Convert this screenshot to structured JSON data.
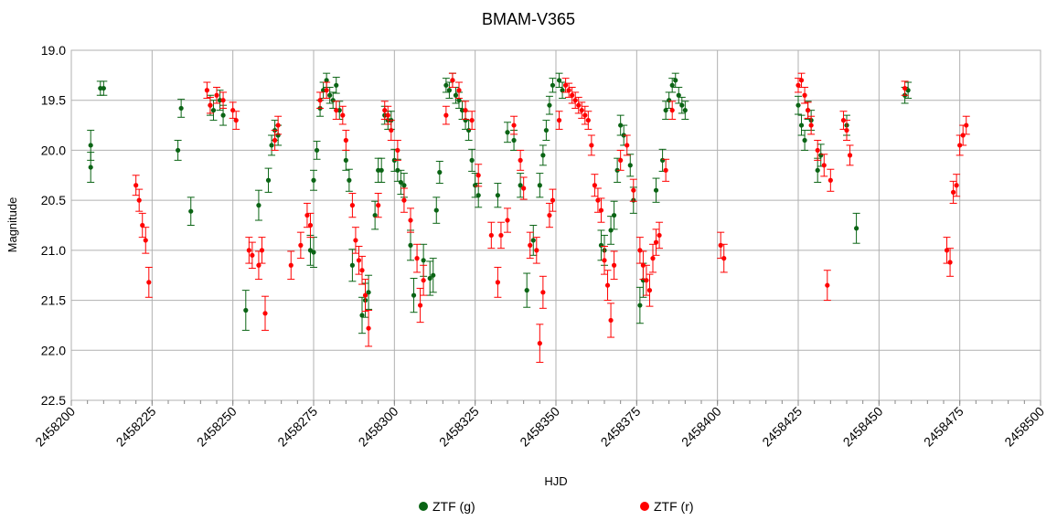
{
  "chart_data": {
    "type": "scatter",
    "title": "BMAM-V365",
    "xlabel": "HJD",
    "ylabel": "Magnitude",
    "xlim": [
      2458200,
      2458500
    ],
    "ylim": [
      19.0,
      22.5
    ],
    "y_inverted": true,
    "x_ticks": [
      "2458200",
      "2458225",
      "2458250",
      "2458275",
      "2458300",
      "2458325",
      "2458350",
      "2458375",
      "2458400",
      "2458425",
      "2458450",
      "2458475",
      "2458500"
    ],
    "y_ticks": [
      "19.0",
      "19.5",
      "20.0",
      "20.5",
      "21.0",
      "21.5",
      "22.0",
      "22.5"
    ],
    "grid": true,
    "legend_position": "bottom",
    "series": [
      {
        "name": "ZTF (g)",
        "color": "#0a6414",
        "points": [
          [
            2458206,
            19.95,
            0.15
          ],
          [
            2458206,
            20.17,
            0.15
          ],
          [
            2458209,
            19.38,
            0.07
          ],
          [
            2458210,
            19.38,
            0.07
          ],
          [
            2458233,
            20.0,
            0.1
          ],
          [
            2458234,
            19.58,
            0.09
          ],
          [
            2458237,
            20.61,
            0.14
          ],
          [
            2458243,
            19.55,
            0.1
          ],
          [
            2458244,
            19.6,
            0.1
          ],
          [
            2458246,
            19.5,
            0.1
          ],
          [
            2458247,
            19.65,
            0.1
          ],
          [
            2458254,
            21.6,
            0.2
          ],
          [
            2458258,
            20.55,
            0.15
          ],
          [
            2458261,
            20.3,
            0.12
          ],
          [
            2458262,
            19.95,
            0.1
          ],
          [
            2458263,
            19.8,
            0.1
          ],
          [
            2458264,
            19.85,
            0.1
          ],
          [
            2458275,
            20.3,
            0.1
          ],
          [
            2458276,
            20.0,
            0.09
          ],
          [
            2458277,
            19.58,
            0.08
          ],
          [
            2458278,
            19.4,
            0.08
          ],
          [
            2458279,
            19.3,
            0.07
          ],
          [
            2458280,
            19.45,
            0.08
          ],
          [
            2458281,
            19.5,
            0.08
          ],
          [
            2458282,
            19.35,
            0.08
          ],
          [
            2458283,
            19.6,
            0.09
          ],
          [
            2458274,
            21.0,
            0.15
          ],
          [
            2458275,
            21.02,
            0.15
          ],
          [
            2458285,
            20.1,
            0.1
          ],
          [
            2458286,
            20.3,
            0.11
          ],
          [
            2458287,
            21.15,
            0.16
          ],
          [
            2458290,
            21.65,
            0.18
          ],
          [
            2458291,
            21.5,
            0.17
          ],
          [
            2458292,
            21.42,
            0.17
          ],
          [
            2458294,
            20.65,
            0.14
          ],
          [
            2458295,
            20.2,
            0.12
          ],
          [
            2458296,
            20.2,
            0.12
          ],
          [
            2458297,
            19.65,
            0.09
          ],
          [
            2458298,
            19.7,
            0.09
          ],
          [
            2458299,
            19.7,
            0.09
          ],
          [
            2458300,
            20.1,
            0.11
          ],
          [
            2458301,
            20.2,
            0.11
          ],
          [
            2458302,
            20.32,
            0.12
          ],
          [
            2458303,
            20.35,
            0.12
          ],
          [
            2458305,
            20.95,
            0.15
          ],
          [
            2458306,
            21.45,
            0.17
          ],
          [
            2458309,
            21.1,
            0.16
          ],
          [
            2458311,
            21.28,
            0.17
          ],
          [
            2458312,
            21.25,
            0.17
          ],
          [
            2458313,
            20.6,
            0.13
          ],
          [
            2458314,
            20.22,
            0.11
          ],
          [
            2458316,
            19.35,
            0.07
          ],
          [
            2458317,
            19.4,
            0.08
          ],
          [
            2458318,
            19.3,
            0.07
          ],
          [
            2458319,
            19.45,
            0.08
          ],
          [
            2458320,
            19.5,
            0.08
          ],
          [
            2458321,
            19.6,
            0.09
          ],
          [
            2458322,
            19.7,
            0.09
          ],
          [
            2458323,
            19.8,
            0.1
          ],
          [
            2458324,
            20.1,
            0.11
          ],
          [
            2458325,
            20.35,
            0.12
          ],
          [
            2458326,
            20.45,
            0.12
          ],
          [
            2458332,
            20.45,
            0.12
          ],
          [
            2458335,
            19.82,
            0.1
          ],
          [
            2458337,
            19.9,
            0.1
          ],
          [
            2458339,
            20.35,
            0.12
          ],
          [
            2458341,
            21.4,
            0.17
          ],
          [
            2458343,
            20.9,
            0.15
          ],
          [
            2458345,
            20.35,
            0.12
          ],
          [
            2458346,
            20.05,
            0.1
          ],
          [
            2458347,
            19.8,
            0.1
          ],
          [
            2458348,
            19.55,
            0.09
          ],
          [
            2458349,
            19.35,
            0.07
          ],
          [
            2458351,
            19.3,
            0.07
          ],
          [
            2458352,
            19.4,
            0.08
          ],
          [
            2458364,
            20.95,
            0.15
          ],
          [
            2458365,
            21.0,
            0.15
          ],
          [
            2458367,
            20.8,
            0.14
          ],
          [
            2458368,
            20.65,
            0.14
          ],
          [
            2458369,
            20.2,
            0.12
          ],
          [
            2458370,
            19.75,
            0.1
          ],
          [
            2458371,
            19.85,
            0.1
          ],
          [
            2458373,
            20.15,
            0.11
          ],
          [
            2458374,
            20.5,
            0.13
          ],
          [
            2458376,
            21.55,
            0.18
          ],
          [
            2458377,
            21.3,
            0.17
          ],
          [
            2458381,
            20.4,
            0.12
          ],
          [
            2458383,
            20.1,
            0.11
          ],
          [
            2458384,
            19.6,
            0.09
          ],
          [
            2458385,
            19.5,
            0.08
          ],
          [
            2458386,
            19.35,
            0.07
          ],
          [
            2458387,
            19.3,
            0.07
          ],
          [
            2458388,
            19.45,
            0.08
          ],
          [
            2458389,
            19.55,
            0.08
          ],
          [
            2458390,
            19.6,
            0.09
          ],
          [
            2458425,
            19.55,
            0.09
          ],
          [
            2458426,
            19.75,
            0.1
          ],
          [
            2458427,
            19.9,
            0.1
          ],
          [
            2458428,
            19.6,
            0.09
          ],
          [
            2458429,
            19.7,
            0.1
          ],
          [
            2458431,
            20.2,
            0.12
          ],
          [
            2458432,
            20.05,
            0.11
          ],
          [
            2458440,
            19.75,
            0.1
          ],
          [
            2458443,
            20.78,
            0.15
          ],
          [
            2458458,
            19.45,
            0.08
          ],
          [
            2458459,
            19.4,
            0.08
          ]
        ]
      },
      {
        "name": "ZTF (r)",
        "color": "#ff0000",
        "points": [
          [
            2458220,
            20.35,
            0.1
          ],
          [
            2458221,
            20.5,
            0.11
          ],
          [
            2458222,
            20.75,
            0.12
          ],
          [
            2458223,
            20.9,
            0.13
          ],
          [
            2458224,
            21.32,
            0.15
          ],
          [
            2458242,
            19.4,
            0.08
          ],
          [
            2458243,
            19.55,
            0.08
          ],
          [
            2458245,
            19.45,
            0.08
          ],
          [
            2458247,
            19.5,
            0.08
          ],
          [
            2458250,
            19.6,
            0.08
          ],
          [
            2458251,
            19.7,
            0.09
          ],
          [
            2458255,
            21.0,
            0.13
          ],
          [
            2458256,
            21.05,
            0.13
          ],
          [
            2458258,
            21.15,
            0.14
          ],
          [
            2458259,
            21.0,
            0.13
          ],
          [
            2458260,
            21.63,
            0.17
          ],
          [
            2458263,
            19.9,
            0.1
          ],
          [
            2458264,
            19.75,
            0.09
          ],
          [
            2458268,
            21.15,
            0.14
          ],
          [
            2458271,
            20.95,
            0.13
          ],
          [
            2458273,
            20.65,
            0.12
          ],
          [
            2458274,
            20.75,
            0.12
          ],
          [
            2458277,
            19.5,
            0.08
          ],
          [
            2458279,
            19.4,
            0.08
          ],
          [
            2458282,
            19.6,
            0.09
          ],
          [
            2458284,
            19.65,
            0.09
          ],
          [
            2458285,
            19.9,
            0.1
          ],
          [
            2458287,
            20.55,
            0.12
          ],
          [
            2458288,
            20.9,
            0.13
          ],
          [
            2458289,
            21.1,
            0.14
          ],
          [
            2458290,
            21.2,
            0.14
          ],
          [
            2458291,
            21.45,
            0.16
          ],
          [
            2458292,
            21.78,
            0.18
          ],
          [
            2458295,
            20.55,
            0.12
          ],
          [
            2458297,
            19.6,
            0.09
          ],
          [
            2458298,
            19.65,
            0.09
          ],
          [
            2458299,
            19.8,
            0.1
          ],
          [
            2458301,
            20.0,
            0.1
          ],
          [
            2458303,
            20.5,
            0.12
          ],
          [
            2458305,
            20.7,
            0.12
          ],
          [
            2458307,
            21.08,
            0.14
          ],
          [
            2458308,
            21.55,
            0.17
          ],
          [
            2458309,
            21.3,
            0.15
          ],
          [
            2458316,
            19.65,
            0.09
          ],
          [
            2458318,
            19.3,
            0.07
          ],
          [
            2458320,
            19.4,
            0.08
          ],
          [
            2458322,
            19.6,
            0.09
          ],
          [
            2458324,
            19.7,
            0.09
          ],
          [
            2458326,
            20.25,
            0.11
          ],
          [
            2458330,
            20.85,
            0.13
          ],
          [
            2458332,
            21.32,
            0.15
          ],
          [
            2458333,
            20.85,
            0.13
          ],
          [
            2458335,
            20.7,
            0.12
          ],
          [
            2458337,
            19.75,
            0.09
          ],
          [
            2458339,
            20.1,
            0.1
          ],
          [
            2458340,
            20.38,
            0.11
          ],
          [
            2458342,
            20.95,
            0.13
          ],
          [
            2458344,
            21.0,
            0.13
          ],
          [
            2458345,
            21.93,
            0.19
          ],
          [
            2458346,
            21.42,
            0.16
          ],
          [
            2458348,
            20.65,
            0.12
          ],
          [
            2458349,
            20.5,
            0.11
          ],
          [
            2458351,
            19.7,
            0.09
          ],
          [
            2458353,
            19.35,
            0.07
          ],
          [
            2458354,
            19.4,
            0.07
          ],
          [
            2458355,
            19.45,
            0.08
          ],
          [
            2458356,
            19.5,
            0.08
          ],
          [
            2458357,
            19.55,
            0.08
          ],
          [
            2458358,
            19.6,
            0.08
          ],
          [
            2458359,
            19.65,
            0.09
          ],
          [
            2458360,
            19.7,
            0.09
          ],
          [
            2458361,
            19.95,
            0.1
          ],
          [
            2458362,
            20.35,
            0.11
          ],
          [
            2458363,
            20.5,
            0.12
          ],
          [
            2458364,
            20.6,
            0.12
          ],
          [
            2458365,
            21.1,
            0.14
          ],
          [
            2458366,
            21.35,
            0.15
          ],
          [
            2458367,
            21.7,
            0.17
          ],
          [
            2458368,
            21.15,
            0.14
          ],
          [
            2458370,
            20.1,
            0.1
          ],
          [
            2458372,
            19.95,
            0.1
          ],
          [
            2458374,
            20.4,
            0.11
          ],
          [
            2458376,
            21.0,
            0.13
          ],
          [
            2458377,
            21.15,
            0.14
          ],
          [
            2458378,
            21.3,
            0.15
          ],
          [
            2458379,
            21.4,
            0.16
          ],
          [
            2458380,
            21.08,
            0.14
          ],
          [
            2458381,
            20.92,
            0.13
          ],
          [
            2458382,
            20.85,
            0.13
          ],
          [
            2458384,
            20.2,
            0.11
          ],
          [
            2458386,
            19.6,
            0.09
          ],
          [
            2458401,
            20.95,
            0.13
          ],
          [
            2458402,
            21.08,
            0.14
          ],
          [
            2458425,
            19.35,
            0.07
          ],
          [
            2458426,
            19.3,
            0.07
          ],
          [
            2458427,
            19.45,
            0.08
          ],
          [
            2458428,
            19.6,
            0.08
          ],
          [
            2458429,
            19.75,
            0.09
          ],
          [
            2458431,
            20.0,
            0.1
          ],
          [
            2458433,
            20.15,
            0.11
          ],
          [
            2458434,
            21.35,
            0.15
          ],
          [
            2458435,
            20.3,
            0.11
          ],
          [
            2458439,
            19.7,
            0.09
          ],
          [
            2458440,
            19.8,
            0.1
          ],
          [
            2458441,
            20.05,
            0.1
          ],
          [
            2458458,
            19.38,
            0.07
          ],
          [
            2458471,
            21.0,
            0.13
          ],
          [
            2458472,
            21.12,
            0.14
          ],
          [
            2458473,
            20.42,
            0.11
          ],
          [
            2458474,
            20.35,
            0.11
          ],
          [
            2458475,
            19.95,
            0.1
          ],
          [
            2458476,
            19.85,
            0.1
          ],
          [
            2458477,
            19.75,
            0.09
          ]
        ]
      }
    ]
  }
}
